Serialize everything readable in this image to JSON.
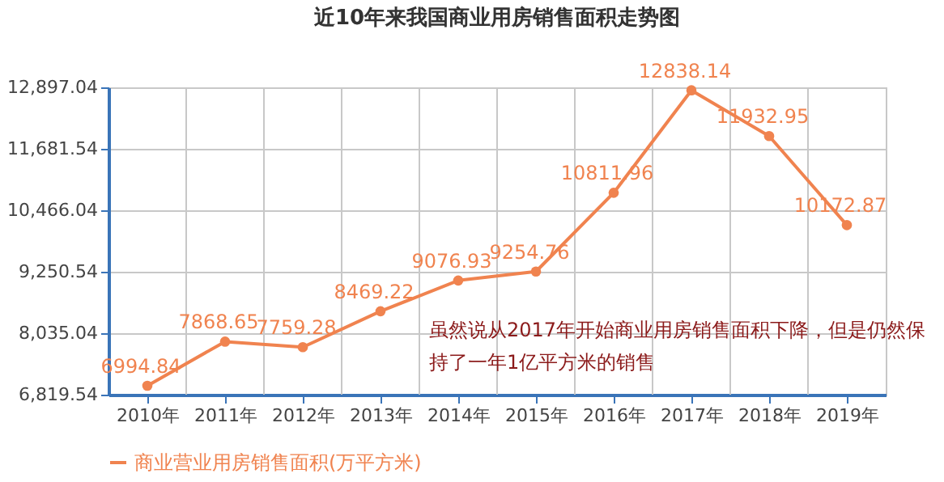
{
  "chart_data": {
    "type": "line",
    "title": "近10年来我国商业用房销售面积走势图",
    "categories": [
      "2010年",
      "2011年",
      "2012年",
      "2013年",
      "2014年",
      "2015年",
      "2016年",
      "2017年",
      "2018年",
      "2019年"
    ],
    "series": [
      {
        "name": "商业营业用房销售面积(万平方米)",
        "color": "#f0834f",
        "values": [
          6994.84,
          7868.65,
          7759.28,
          8469.22,
          9076.93,
          9254.76,
          10811.96,
          12838.14,
          11932.95,
          10172.87
        ]
      }
    ],
    "ylim": [
      6819.54,
      12897.04
    ],
    "yticks": [
      {
        "value": 6819.54,
        "label": "6,819.54"
      },
      {
        "value": 8035.04,
        "label": "8,035.04"
      },
      {
        "value": 9250.54,
        "label": "9,250.54"
      },
      {
        "value": 10466.04,
        "label": "10,466.04"
      },
      {
        "value": 11681.54,
        "label": "11,681.54"
      },
      {
        "value": 12897.04,
        "label": "12,897.04"
      }
    ],
    "annotations": [
      "虽然说从2017年开始商业用房销售面积下降，但是仍然保",
      "持了一年1亿平方米的销售"
    ],
    "data_labels": true,
    "grid": true,
    "legend": "bottom",
    "marker": "circle",
    "line_style": "solid"
  }
}
